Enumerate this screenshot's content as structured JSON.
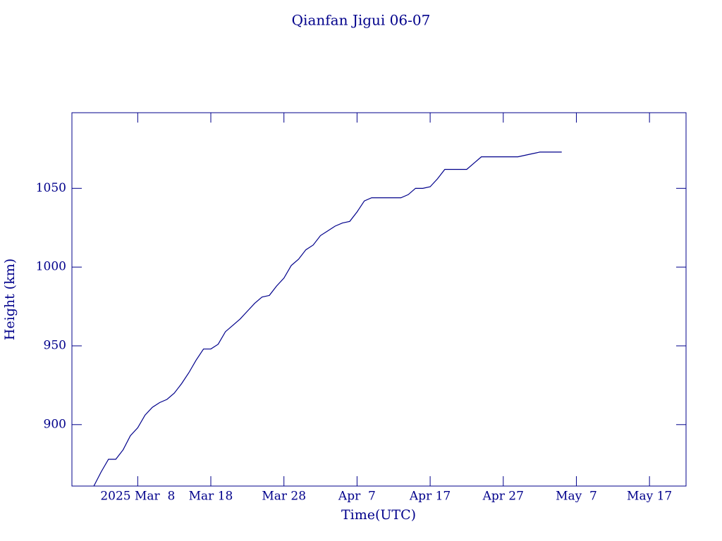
{
  "chart_data": {
    "type": "line",
    "title": "Qianfan Jigui 06-07",
    "xlabel": "Time(UTC)",
    "ylabel": "Height (km)",
    "color": "#00008b",
    "x": [
      "2025-03-02",
      "2025-03-03",
      "2025-03-04",
      "2025-03-05",
      "2025-03-06",
      "2025-03-07",
      "2025-03-08",
      "2025-03-09",
      "2025-03-10",
      "2025-03-11",
      "2025-03-12",
      "2025-03-13",
      "2025-03-14",
      "2025-03-15",
      "2025-03-16",
      "2025-03-17",
      "2025-03-18",
      "2025-03-19",
      "2025-03-20",
      "2025-03-21",
      "2025-03-22",
      "2025-03-23",
      "2025-03-24",
      "2025-03-25",
      "2025-03-26",
      "2025-03-27",
      "2025-03-28",
      "2025-03-29",
      "2025-03-30",
      "2025-03-31",
      "2025-04-01",
      "2025-04-02",
      "2025-04-03",
      "2025-04-04",
      "2025-04-05",
      "2025-04-06",
      "2025-04-07",
      "2025-04-08",
      "2025-04-09",
      "2025-04-10",
      "2025-04-11",
      "2025-04-12",
      "2025-04-13",
      "2025-04-14",
      "2025-04-15",
      "2025-04-16",
      "2025-04-17",
      "2025-04-18",
      "2025-04-19",
      "2025-04-20",
      "2025-04-21",
      "2025-04-22",
      "2025-04-23",
      "2025-04-24",
      "2025-04-25",
      "2025-04-26",
      "2025-04-27",
      "2025-04-28",
      "2025-04-29",
      "2025-04-30",
      "2025-05-01",
      "2025-05-02",
      "2025-05-03",
      "2025-05-04",
      "2025-05-05"
    ],
    "values": [
      861,
      870,
      878,
      878,
      884,
      893,
      898,
      906,
      911,
      914,
      916,
      920,
      926,
      933,
      941,
      948,
      948,
      951,
      959,
      963,
      967,
      972,
      977,
      981,
      982,
      988,
      993,
      1001,
      1005,
      1011,
      1014,
      1020,
      1023,
      1026,
      1028,
      1029,
      1035,
      1042,
      1044,
      1044,
      1044,
      1044,
      1044,
      1046,
      1050,
      1050,
      1051,
      1056,
      1062,
      1062,
      1062,
      1062,
      1066,
      1070,
      1070,
      1070,
      1070,
      1070,
      1070,
      1071,
      1072,
      1073,
      1073,
      1073,
      1073
    ],
    "xlim": [
      "2025-02-27",
      "2025-05-22"
    ],
    "xticks": [
      {
        "value": "2025-03-08",
        "label": "2025 Mar  8"
      },
      {
        "value": "2025-03-18",
        "label": "Mar 18"
      },
      {
        "value": "2025-03-28",
        "label": "Mar 28"
      },
      {
        "value": "2025-04-07",
        "label": "Apr  7"
      },
      {
        "value": "2025-04-17",
        "label": "Apr 17"
      },
      {
        "value": "2025-04-27",
        "label": "Apr 27"
      },
      {
        "value": "2025-05-07",
        "label": "May  7"
      },
      {
        "value": "2025-05-17",
        "label": "May 17"
      }
    ],
    "ylim": [
      861,
      1098
    ],
    "yticks": [
      900,
      950,
      1000,
      1050
    ]
  }
}
